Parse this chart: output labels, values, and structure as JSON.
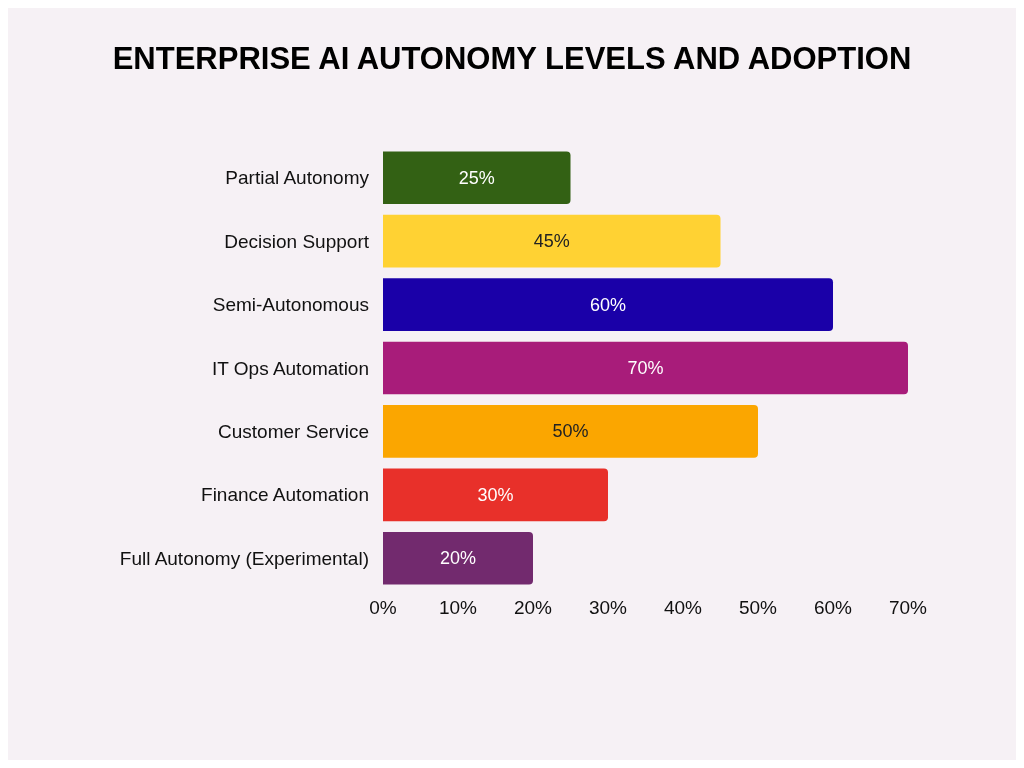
{
  "chart_data": {
    "type": "bar",
    "orientation": "horizontal",
    "title": "ENTERPRISE AI AUTONOMY LEVELS AND ADOPTION",
    "categories": [
      "Partial Autonomy",
      "Decision Support",
      "Semi-Autonomous",
      "IT Ops Automation",
      "Customer Service",
      "Finance Automation",
      "Full Autonomy (Experimental)"
    ],
    "values": [
      25,
      45,
      60,
      70,
      50,
      30,
      20
    ],
    "colors": [
      "#336114",
      "#ffd233",
      "#1a00a8",
      "#a81c7a",
      "#fba600",
      "#e8302a",
      "#722a6e"
    ],
    "value_labels": [
      "25%",
      "45%",
      "60%",
      "70%",
      "50%",
      "30%",
      "20%"
    ],
    "xlim": [
      0,
      70
    ],
    "xticks": [
      {
        "value": 0,
        "label": "0%"
      },
      {
        "value": 10,
        "label": "10%"
      },
      {
        "value": 20,
        "label": "20%"
      },
      {
        "value": 30,
        "label": "30%"
      },
      {
        "value": 40,
        "label": "40%"
      },
      {
        "value": 50,
        "label": "50%"
      },
      {
        "value": 60,
        "label": "60%"
      },
      {
        "value": 70,
        "label": "70%"
      }
    ],
    "grid": false
  }
}
